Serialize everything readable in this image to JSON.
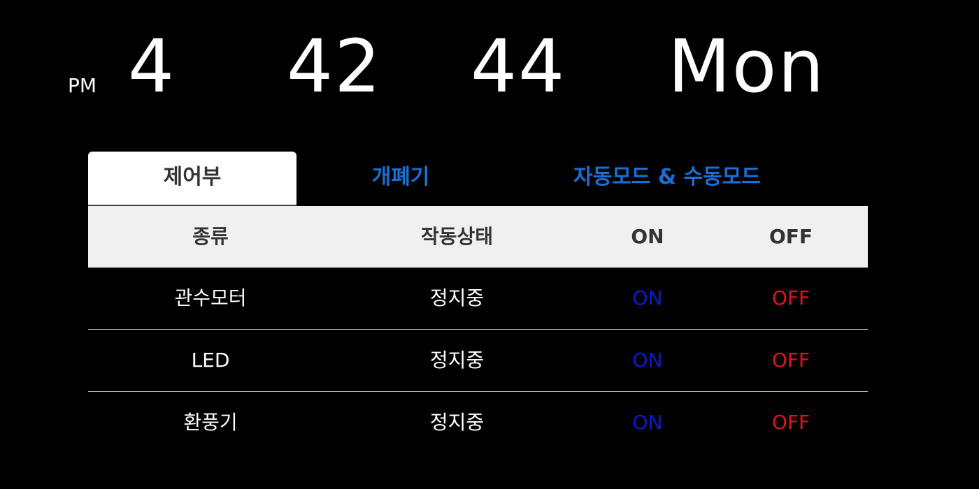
{
  "clock": {
    "ampm": "PM",
    "hour": "4",
    "minute": "42",
    "second": "44",
    "day": "Mon"
  },
  "tabs": [
    {
      "label": "제어부",
      "active": true
    },
    {
      "label": "개폐기",
      "active": false
    },
    {
      "label": "자동모드 & 수동모드",
      "active": false
    }
  ],
  "table": {
    "headers": [
      "종류",
      "작동상태",
      "ON",
      "OFF"
    ],
    "rows": [
      {
        "type": "관수모터",
        "status": "정지중",
        "on": "ON",
        "off": "OFF"
      },
      {
        "type": "LED",
        "status": "정지중",
        "on": "ON",
        "off": "OFF"
      },
      {
        "type": "환풍기",
        "status": "정지중",
        "on": "ON",
        "off": "OFF"
      }
    ]
  },
  "colors": {
    "background": "#000000",
    "tab_link": "#1a6fd6",
    "on_button": "#0a1ad6",
    "off_button": "#e0141c"
  }
}
